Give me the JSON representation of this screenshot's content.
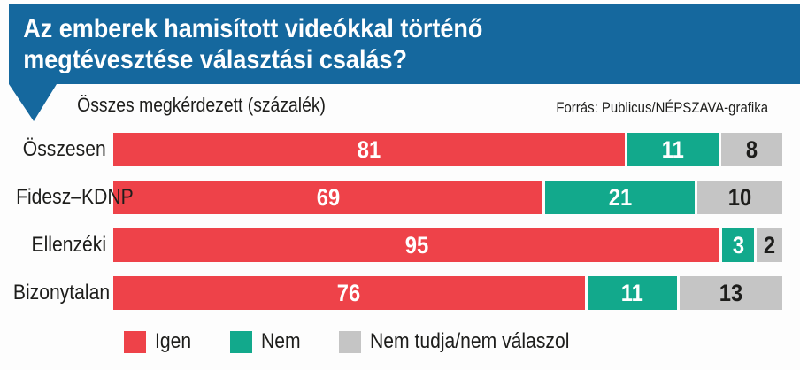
{
  "header": {
    "title_line1": "Az emberek hamisított videókkal történő",
    "title_line2": "megtévesztése választási csalás?"
  },
  "subtitle": "Összes megkérdezett (százalék)",
  "source": "Forrás: Publicus/NÉPSZAVA-grafika",
  "colors": {
    "yes": "#ee4249",
    "no": "#12a98c",
    "dk": "#c5c5c5",
    "header_blue": "#15689e",
    "text": "#1d1d1b"
  },
  "legend": {
    "yes": "Igen",
    "no": "Nem",
    "dk": "Nem tudja/nem válaszol"
  },
  "chart_data": {
    "type": "bar",
    "orientation": "horizontal",
    "stacked": true,
    "unit": "percent",
    "title": "Az emberek hamisított videókkal történő megtévesztése választási csalás?",
    "subtitle": "Összes megkérdezett (százalék)",
    "xlabel": "",
    "ylabel": "",
    "xlim": [
      0,
      100
    ],
    "grid": false,
    "value_labels": true,
    "legend_position": "bottom",
    "categories": [
      "Összesen",
      "Fidesz–KDNP",
      "Ellenzéki",
      "Bizonytalan"
    ],
    "series": [
      {
        "name": "Igen",
        "color": "#ee4249",
        "values": [
          81,
          69,
          95,
          76
        ]
      },
      {
        "name": "Nem",
        "color": "#12a98c",
        "values": [
          11,
          21,
          3,
          11
        ]
      },
      {
        "name": "Nem tudja/nem válaszol",
        "color": "#c5c5c5",
        "values": [
          8,
          10,
          2,
          13
        ]
      }
    ]
  }
}
